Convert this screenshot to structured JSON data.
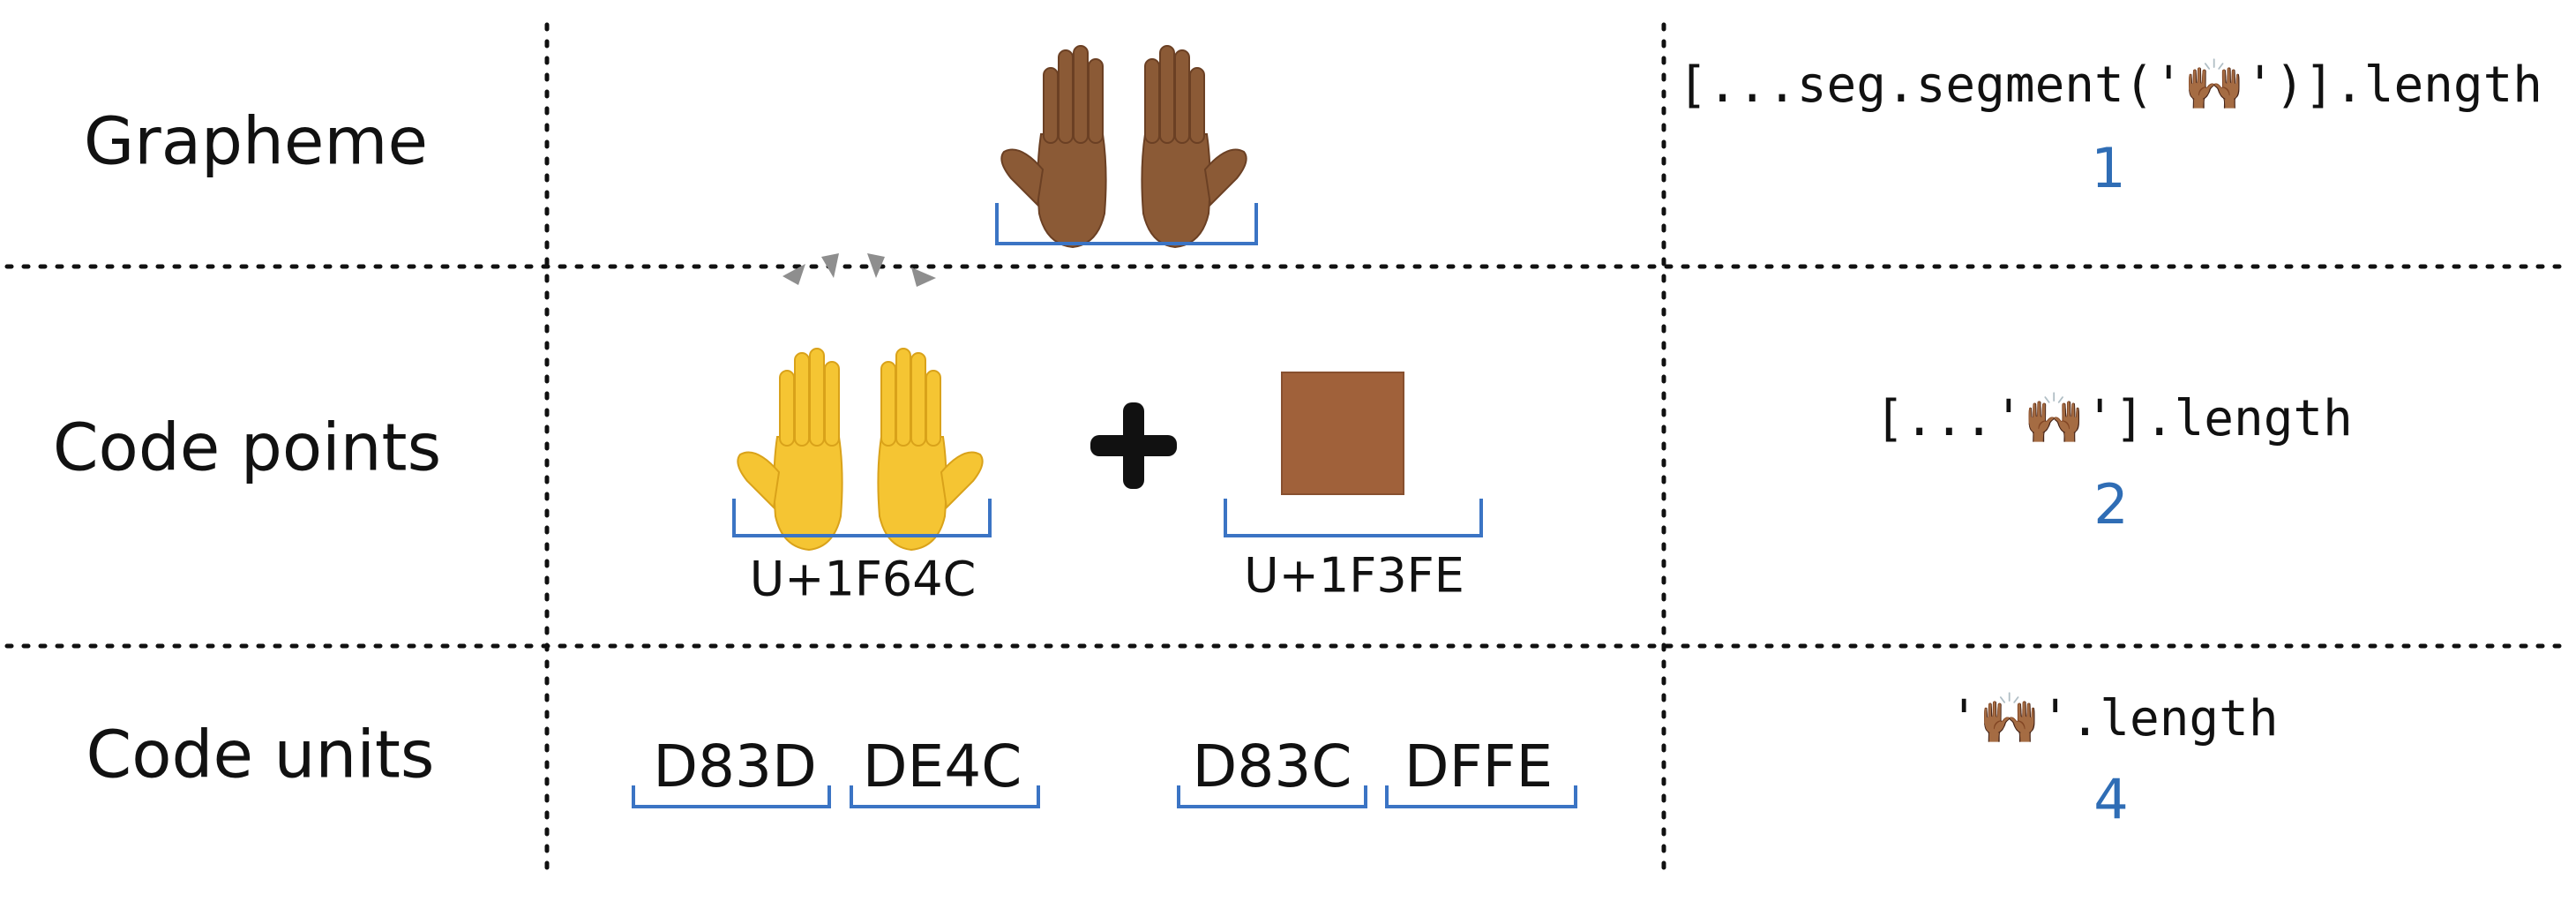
{
  "colors": {
    "bracket": "#3b74c4",
    "result": "#2f6db5",
    "skin_dark": "#8b5a36",
    "skin_yellow": "#f5c533",
    "modifier_square": "#a0613a"
  },
  "rows": [
    {
      "label": "Grapheme",
      "icons": [
        "raising-hands-dark-skin-emoji"
      ],
      "code": "[...seg.segment('🙌🏾')].length",
      "result": "1"
    },
    {
      "label": "Code points",
      "icons": [
        "raising-hands-yellow-emoji",
        "plus-icon",
        "skin-tone-modifier-square"
      ],
      "codepoints": [
        "U+1F64C",
        "U+1F3FE"
      ],
      "code": "[...'🙌🏾'].length",
      "result": "2"
    },
    {
      "label": "Code units",
      "code_units": [
        "D83D",
        "DE4C",
        "D83C",
        "DFFE"
      ],
      "code": "'🙌🏾'.length",
      "result": "4"
    }
  ]
}
